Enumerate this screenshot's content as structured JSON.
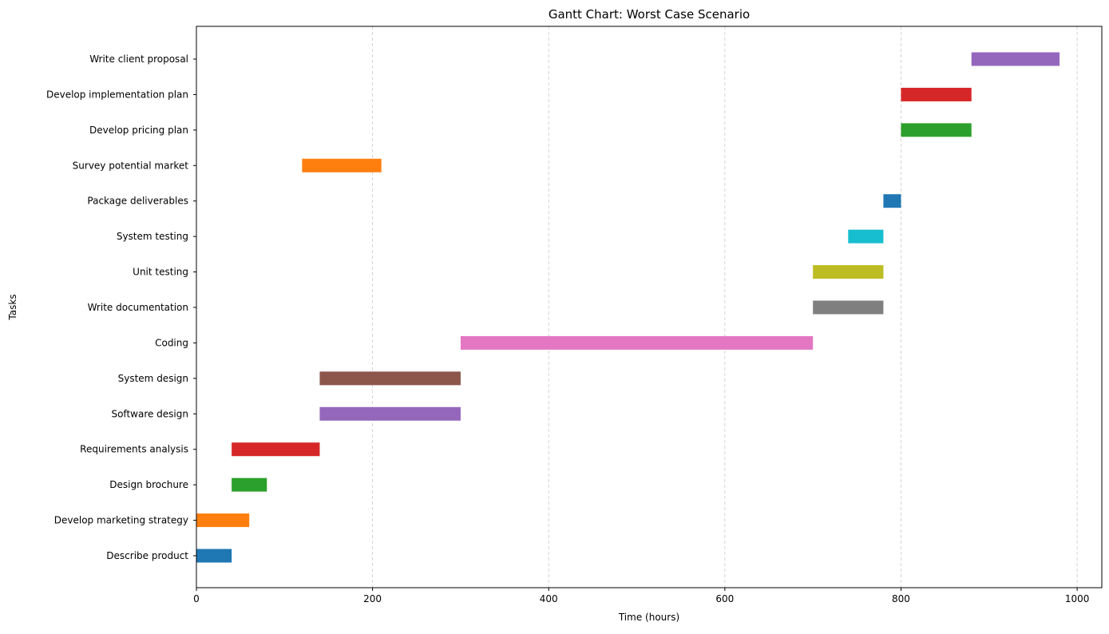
{
  "chart_data": {
    "type": "gantt",
    "title": "Gantt Chart: Worst Case Scenario",
    "xlabel": "Time (hours)",
    "ylabel": "Tasks",
    "xlim": [
      0,
      1028
    ],
    "xticks": [
      0,
      200,
      400,
      600,
      800,
      1000
    ],
    "grid": "x-dashed",
    "tasks": [
      {
        "name": "Describe product",
        "start": 0,
        "end": 40,
        "color": "#1f77b4"
      },
      {
        "name": "Develop marketing strategy",
        "start": 0,
        "end": 60,
        "color": "#ff7f0e"
      },
      {
        "name": "Design brochure",
        "start": 40,
        "end": 80,
        "color": "#2ca02c"
      },
      {
        "name": "Requirements analysis",
        "start": 40,
        "end": 140,
        "color": "#d62728"
      },
      {
        "name": "Software design",
        "start": 140,
        "end": 300,
        "color": "#9467bd"
      },
      {
        "name": "System design",
        "start": 140,
        "end": 300,
        "color": "#8c564b"
      },
      {
        "name": "Coding",
        "start": 300,
        "end": 700,
        "color": "#e377c2"
      },
      {
        "name": "Write documentation",
        "start": 700,
        "end": 780,
        "color": "#7f7f7f"
      },
      {
        "name": "Unit testing",
        "start": 700,
        "end": 780,
        "color": "#bcbd22"
      },
      {
        "name": "System testing",
        "start": 740,
        "end": 780,
        "color": "#17becf"
      },
      {
        "name": "Package deliverables",
        "start": 780,
        "end": 800,
        "color": "#1f77b4"
      },
      {
        "name": "Survey potential market",
        "start": 120,
        "end": 210,
        "color": "#ff7f0e"
      },
      {
        "name": "Develop pricing plan",
        "start": 800,
        "end": 880,
        "color": "#2ca02c"
      },
      {
        "name": "Develop implementation plan",
        "start": 800,
        "end": 880,
        "color": "#d62728"
      },
      {
        "name": "Write client proposal",
        "start": 880,
        "end": 980,
        "color": "#9467bd"
      }
    ]
  }
}
